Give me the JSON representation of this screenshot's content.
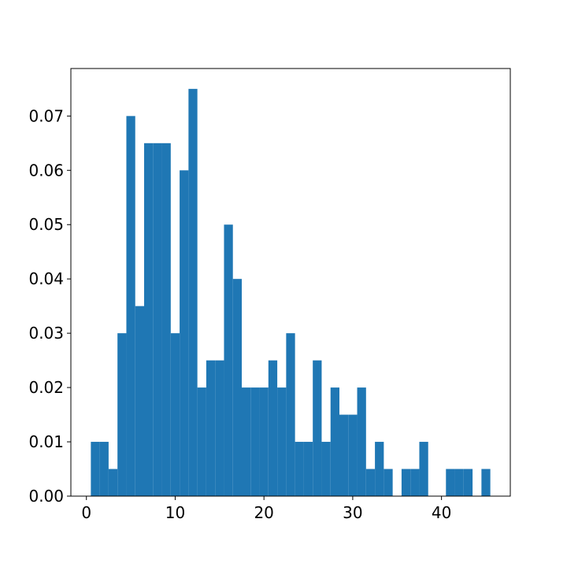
{
  "chart_data": {
    "type": "histogram",
    "bins": [
      0.5,
      1.5,
      2.5,
      3.5,
      4.5,
      5.5,
      6.5,
      7.5,
      8.5,
      9.5,
      10.5,
      11.5,
      12.5,
      13.5,
      14.5,
      15.5,
      16.5,
      17.5,
      18.5,
      19.5,
      20.5,
      21.5,
      22.5,
      23.5,
      24.5,
      25.5,
      26.5,
      27.5,
      28.5,
      29.5,
      30.5,
      31.5,
      32.5,
      33.5,
      34.5,
      35.5,
      36.5,
      37.5,
      38.5,
      39.5,
      40.5,
      41.5,
      42.5,
      43.5,
      44.5,
      45.5
    ],
    "values": [
      0.01,
      0.01,
      0.005,
      0.03,
      0.07,
      0.035,
      0.065,
      0.065,
      0.065,
      0.03,
      0.06,
      0.075,
      0.02,
      0.025,
      0.025,
      0.05,
      0.04,
      0.02,
      0.02,
      0.02,
      0.025,
      0.02,
      0.03,
      0.01,
      0.01,
      0.025,
      0.01,
      0.02,
      0.015,
      0.015,
      0.02,
      0.005,
      0.01,
      0.005,
      0,
      0.005,
      0.005,
      0.01,
      0,
      0,
      0.005,
      0.005,
      0.005,
      0,
      0.005
    ],
    "color": "#1f77b4",
    "xlim": [
      -1.75,
      47.75
    ],
    "xticks": [
      0,
      10,
      20,
      30,
      40
    ],
    "ylim": [
      0,
      0.07875
    ],
    "yticks": [
      {
        "value": 0,
        "label": "0.00"
      },
      0.01,
      0.02,
      0.03,
      0.04,
      0.05,
      0.06,
      0.07
    ]
  }
}
